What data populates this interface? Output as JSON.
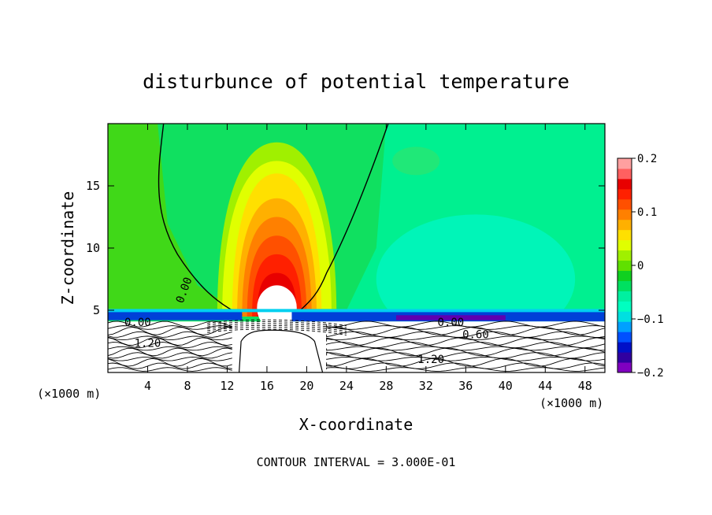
{
  "chart_data": {
    "type": "heatmap",
    "title": "disturbunce of potential temperature",
    "xlabel": "X-coordinate",
    "ylabel": "Z-coordinate",
    "x_unit": "(×1000 m)",
    "x_unit_right": "(×1000 m)",
    "xlim": [
      0,
      50
    ],
    "ylim": [
      0,
      20
    ],
    "x_ticks": [
      4,
      8,
      12,
      16,
      20,
      24,
      28,
      32,
      36,
      40,
      44,
      48
    ],
    "y_ticks": [
      5,
      10,
      15
    ],
    "footer": "CONTOUR INTERVAL = 3.000E-01",
    "colorbar": {
      "range": [
        -0.2,
        0.2
      ],
      "tick_values": [
        0.2,
        0.1,
        0,
        -0.1,
        -0.2
      ],
      "tick_labels": [
        "0.2",
        "0.1",
        "0",
        "−0.1",
        "−0.2"
      ],
      "colors": [
        "#8000c0",
        "#3000a0",
        "#0010c8",
        "#0050ff",
        "#00a0ff",
        "#00e0e0",
        "#00ffc0",
        "#00f0a0",
        "#00e060",
        "#10d020",
        "#60e000",
        "#a0f000",
        "#e0ff00",
        "#ffe000",
        "#ffb000",
        "#ff8000",
        "#ff5000",
        "#ff2000",
        "#e80000",
        "#ff6060",
        "#ffa0a0"
      ]
    },
    "warm_plume": {
      "center_x": 17,
      "base_z": 4.5,
      "levels": [
        {
          "value": 0.02,
          "half_width": 6,
          "top_z": 18.5
        },
        {
          "value": 0.04,
          "half_width": 5.5,
          "top_z": 17
        },
        {
          "value": 0.06,
          "half_width": 4.5,
          "top_z": 16
        },
        {
          "value": 0.08,
          "half_width": 4,
          "top_z": 14
        },
        {
          "value": 0.1,
          "half_width": 3.5,
          "top_z": 12.5
        },
        {
          "value": 0.12,
          "half_width": 3,
          "top_z": 11
        },
        {
          "value": 0.14,
          "half_width": 2.5,
          "top_z": 9.5
        },
        {
          "value": 0.16,
          "half_width": 2,
          "top_z": 8
        },
        {
          "value": 0.18,
          "half_width": 1.6,
          "top_z": 7
        },
        {
          "value": 0.2,
          "half_width": 1.2,
          "top_z": 6.2
        }
      ]
    },
    "contour_labels": [
      {
        "text": "0.00",
        "x": 7.7,
        "z": 6.6,
        "rotate": -70
      },
      {
        "text": "0.00",
        "x": 3,
        "z": 4.0
      },
      {
        "text": "1.20",
        "x": 4,
        "z": 2.3
      },
      {
        "text": "0.00",
        "x": 34.5,
        "z": 4.0
      },
      {
        "text": "0.60",
        "x": 37,
        "z": 3.0
      },
      {
        "text": "1.20",
        "x": 32.5,
        "z": 1.0
      }
    ]
  }
}
